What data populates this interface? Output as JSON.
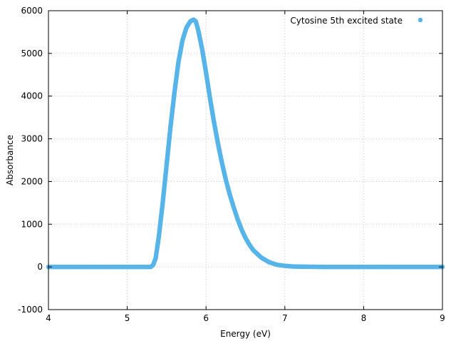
{
  "chart_data": {
    "type": "scatter",
    "title": "",
    "xlabel": "Energy (eV)",
    "ylabel": "Absorbance",
    "xlim": [
      4,
      9
    ],
    "ylim": [
      -1000,
      6000
    ],
    "x_ticks": [
      4,
      5,
      6,
      7,
      8,
      9
    ],
    "y_ticks": [
      -1000,
      0,
      1000,
      2000,
      3000,
      4000,
      5000,
      6000
    ],
    "grid": true,
    "legend_position": "top-right",
    "series": [
      {
        "name": "Cytosine 5th excited state",
        "color": "#56b4e9",
        "marker": "circle",
        "x": [
          4.0,
          4.2,
          4.4,
          4.6,
          4.8,
          5.0,
          5.2,
          5.3,
          5.33,
          5.36,
          5.4,
          5.45,
          5.5,
          5.55,
          5.6,
          5.65,
          5.7,
          5.75,
          5.8,
          5.84,
          5.87,
          5.9,
          5.95,
          6.0,
          6.05,
          6.1,
          6.15,
          6.2,
          6.25,
          6.3,
          6.35,
          6.4,
          6.45,
          6.5,
          6.55,
          6.6,
          6.7,
          6.8,
          6.9,
          7.0,
          7.1,
          7.25,
          7.5,
          8.0,
          8.5,
          9.0
        ],
        "y": [
          0,
          0,
          0,
          0,
          0,
          0,
          0,
          0,
          50,
          200,
          700,
          1500,
          2400,
          3300,
          4100,
          4800,
          5300,
          5600,
          5750,
          5790,
          5750,
          5550,
          5100,
          4550,
          3950,
          3400,
          2900,
          2450,
          2050,
          1700,
          1400,
          1120,
          880,
          680,
          520,
          390,
          220,
          110,
          50,
          25,
          10,
          5,
          0,
          0,
          0,
          0
        ]
      }
    ]
  }
}
